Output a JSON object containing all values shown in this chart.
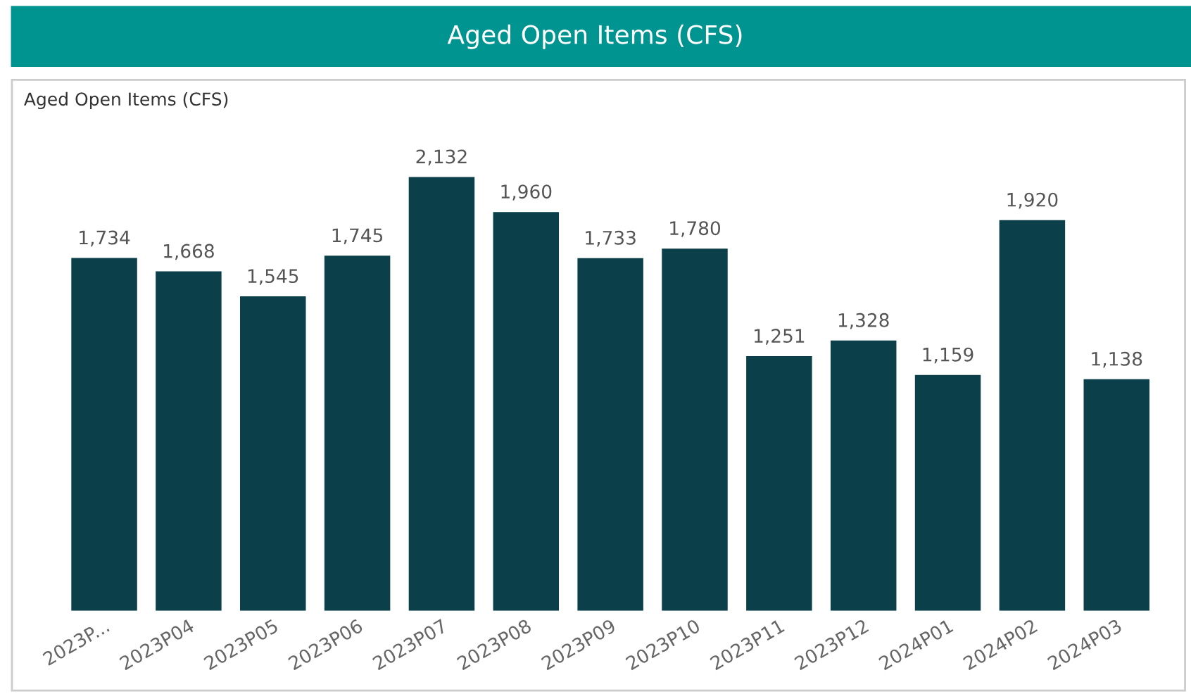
{
  "chart_data": {
    "type": "bar",
    "title": "Aged Open Items (CFS)",
    "subtitle": "Aged Open Items (CFS)",
    "categories": [
      "2023P...",
      "2023P04",
      "2023P05",
      "2023P06",
      "2023P07",
      "2023P08",
      "2023P09",
      "2023P10",
      "2023P11",
      "2023P12",
      "2024P01",
      "2024P02",
      "2024P03"
    ],
    "values": [
      1734,
      1668,
      1545,
      1745,
      2132,
      1960,
      1733,
      1780,
      1251,
      1328,
      1159,
      1920,
      1138
    ],
    "value_labels": [
      "1,734",
      "1,668",
      "1,545",
      "1,745",
      "2,132",
      "1,960",
      "1,733",
      "1,780",
      "1,251",
      "1,328",
      "1,159",
      "1,920",
      "1,138"
    ],
    "color": "#0b404a",
    "grid": false,
    "legend": false
  }
}
